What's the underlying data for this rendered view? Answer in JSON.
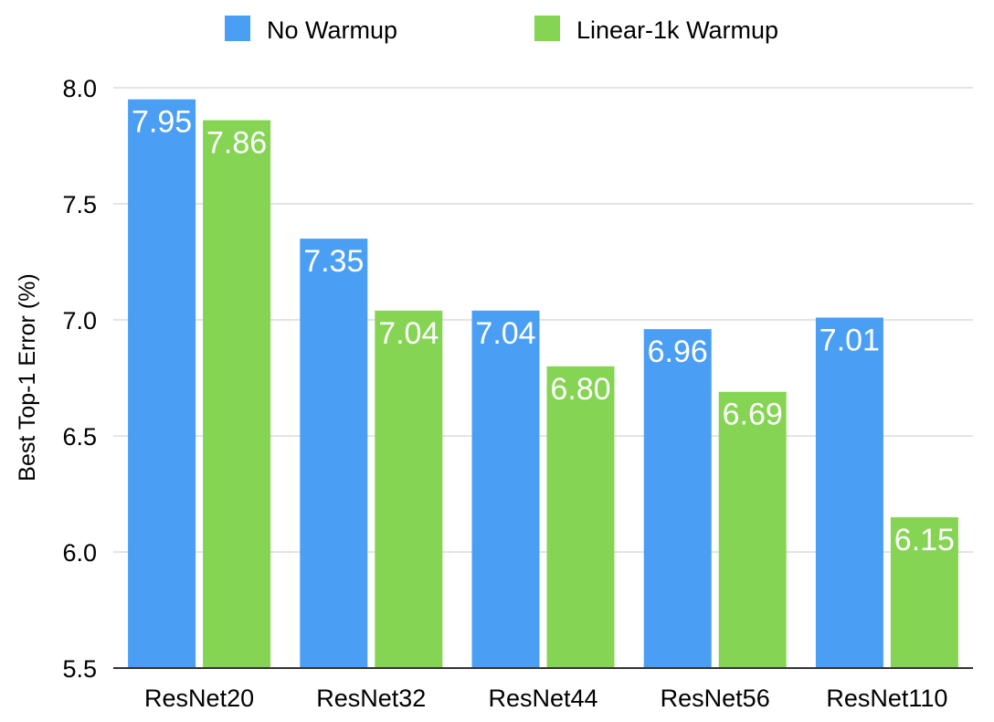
{
  "chart_data": {
    "type": "bar",
    "title": "",
    "xlabel": "",
    "ylabel": "Best Top-1 Error (%)",
    "ylim": [
      5.5,
      8.0
    ],
    "yticks": [
      "5.5",
      "6.0",
      "6.5",
      "7.0",
      "7.5",
      "8.0"
    ],
    "grid": true,
    "legend_position": "top",
    "categories": [
      "ResNet20",
      "ResNet32",
      "ResNet44",
      "ResNet56",
      "ResNet110"
    ],
    "series": [
      {
        "name": "No Warmup",
        "color": "#4a9ff5",
        "values": [
          7.95,
          7.35,
          7.04,
          6.96,
          7.01
        ],
        "labels": [
          "7.95",
          "7.35",
          "7.04",
          "6.96",
          "7.01"
        ]
      },
      {
        "name": "Linear-1k Warmup",
        "color": "#85d454",
        "values": [
          7.86,
          7.04,
          6.8,
          6.69,
          6.15
        ],
        "labels": [
          "7.86",
          "7.04",
          "6.80",
          "6.69",
          "6.15"
        ]
      }
    ]
  }
}
